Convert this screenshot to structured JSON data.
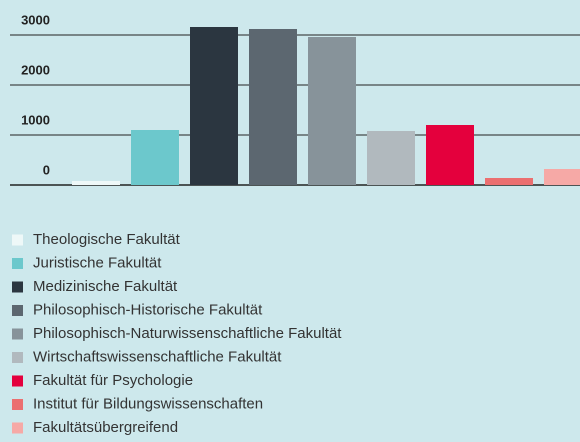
{
  "chart_data": {
    "type": "bar",
    "categories": [
      "Theologische Fakultät",
      "Juristische Fakultät",
      "Medizinische Fakultät",
      "Philosophisch-Historische Fakultät",
      "Philosophisch-Naturwissenschaftliche Fakultät",
      "Wirtschaftswissenschaftliche Fakultät",
      "Fakultät für Psychologie",
      "Institut für Bildungswissenschaften",
      "Fakultätsübergreifend"
    ],
    "values": [
      80,
      1100,
      3160,
      3120,
      2960,
      1080,
      1200,
      140,
      320
    ],
    "colors": [
      "#eef8f8",
      "#6cc8cc",
      "#2b3640",
      "#5c6770",
      "#87939a",
      "#b1b9be",
      "#e4003d",
      "#eb6f70",
      "#f6a9a6"
    ],
    "ylim": [
      0,
      3700
    ],
    "yticks": [
      0,
      1000,
      2000,
      3000
    ],
    "grid": true,
    "legend": "bottom"
  }
}
